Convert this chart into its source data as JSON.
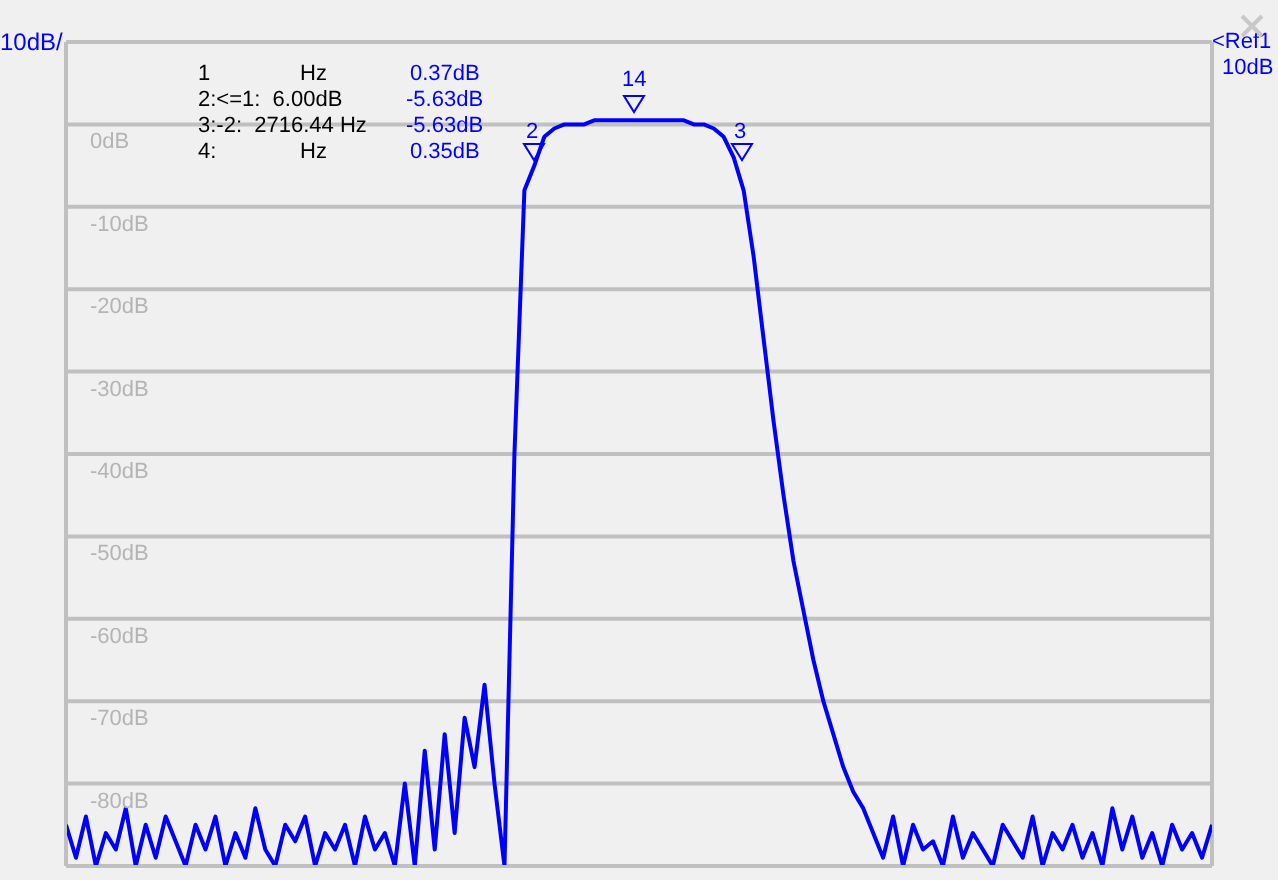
{
  "chart_data": {
    "type": "line",
    "ylabel": "10dB/",
    "categories": [
      null,
      null,
      null,
      null,
      null,
      null,
      null,
      null,
      null,
      null,
      null,
      null,
      null,
      null,
      null,
      null,
      null,
      null,
      null,
      null,
      null,
      null,
      null,
      null,
      null,
      null,
      null,
      null,
      null,
      null,
      null,
      null,
      null,
      null,
      null,
      null,
      null,
      null,
      null,
      null,
      null,
      null,
      null,
      null,
      null,
      null,
      null,
      null,
      null,
      null,
      null,
      null,
      null,
      null,
      null,
      null,
      null,
      null,
      null,
      null,
      null,
      null,
      null,
      null,
      null,
      null,
      null,
      null,
      null,
      null,
      null,
      null,
      null,
      null,
      null,
      null,
      null,
      null,
      null,
      null,
      null,
      null,
      null,
      null,
      null,
      null,
      null,
      null,
      null,
      null,
      null,
      null,
      null,
      null,
      null,
      null,
      null,
      null,
      null,
      null,
      null,
      null,
      null,
      null,
      null,
      null,
      null,
      null,
      null,
      null,
      null,
      null,
      null,
      null,
      null,
      null
    ],
    "series": [
      {
        "color": "#0000ff",
        "values": [
          -85,
          -89,
          -84,
          -90,
          -86,
          -88,
          -83,
          -90,
          -85,
          -89,
          -84,
          -87,
          -90,
          -85,
          -88,
          -84,
          -90,
          -86,
          -89,
          -83,
          -88,
          -90,
          -85,
          -87,
          -84,
          -90,
          -86,
          -88,
          -85,
          -90,
          -84,
          -88,
          -86,
          -90,
          -80,
          -90,
          -76,
          -88,
          -74,
          -86,
          -72,
          -78,
          -68,
          -80,
          -90,
          -40,
          -8,
          -5,
          -1.5,
          -0.5,
          0,
          0,
          0,
          0.5,
          0.5,
          0.5,
          0.5,
          0.5,
          0.5,
          0.5,
          0.5,
          0.5,
          0.5,
          0,
          0,
          -0.5,
          -1.5,
          -4,
          -8,
          -16,
          -26,
          -36,
          -45,
          -53,
          -59,
          -65,
          -70,
          -74,
          -78,
          -81,
          -83,
          -86,
          -89,
          -84,
          -90,
          -85,
          -88,
          -87,
          -90,
          -84,
          -89,
          -86,
          -88,
          -90,
          -85,
          -87,
          -89,
          -84,
          -90,
          -86,
          -88,
          -85,
          -89,
          -86,
          -90,
          -83,
          -88,
          -84,
          -89,
          -86,
          -90,
          -85,
          -88,
          -86,
          -89,
          -85
        ]
      }
    ],
    "ylim": [
      -90,
      10
    ],
    "yticks": [
      {
        "value": -90,
        "label": null
      },
      {
        "value": -80,
        "label": "-80dB"
      },
      {
        "value": -70,
        "label": "-70dB"
      },
      {
        "value": -60,
        "label": "-60dB"
      },
      {
        "value": -50,
        "label": "-50dB"
      },
      {
        "value": -40,
        "label": "-40dB"
      },
      {
        "value": -30,
        "label": "-30dB"
      },
      {
        "value": -20,
        "label": "-20dB"
      },
      {
        "value": -10,
        "label": "-10dB"
      },
      {
        "value": 0,
        "label": "0dB"
      },
      {
        "value": 10,
        "label": null
      }
    ],
    "grid": true,
    "tick_labels": "y",
    "marker": "none",
    "line_style": "solid",
    "annotations": [
      "1",
      "Hz",
      "0.37dB",
      "2:<=1:  6.00dB",
      "-5.63dB",
      "3:-2:  2716.44 Hz",
      "-5.63dB",
      "4:",
      "Hz",
      "0.35dB",
      "<Ref1",
      "10dB",
      "2",
      "14",
      "3"
    ]
  }
}
